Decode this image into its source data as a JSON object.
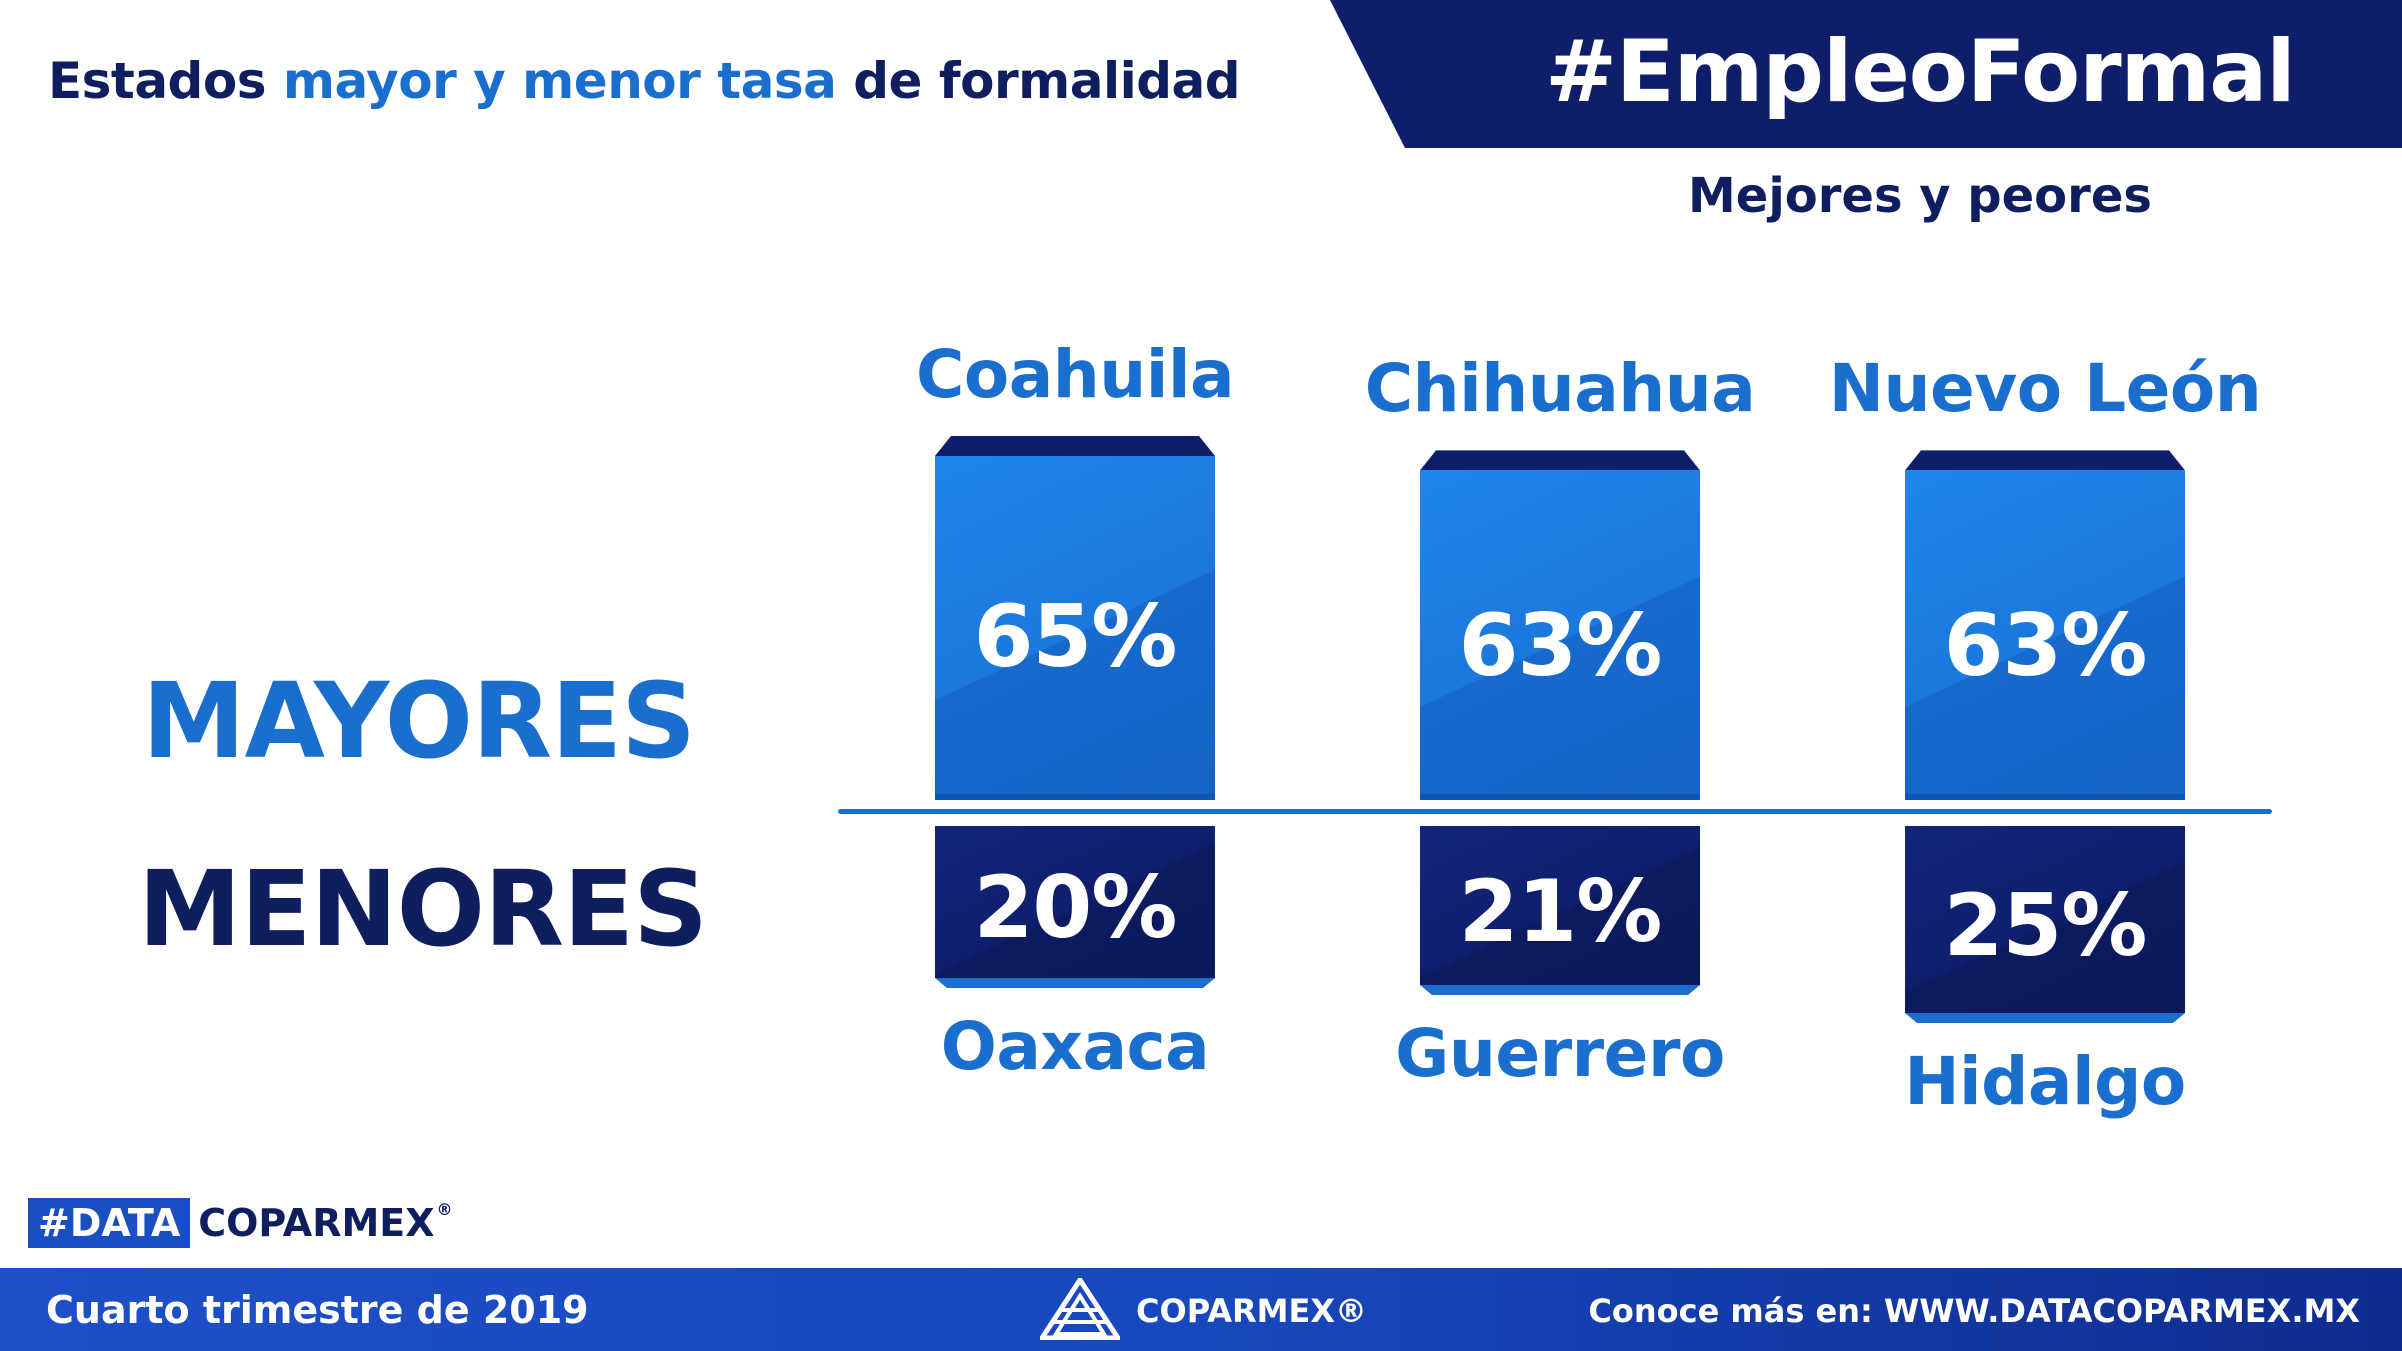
{
  "header": {
    "title_part1": "Estados ",
    "title_highlight": "mayor y menor tasa",
    "title_part2": " de formalidad",
    "hashtag": "#EmpleoFormal",
    "subtitle": "Mejores y peores"
  },
  "sections": {
    "top_label": "MAYORES",
    "bottom_label": "MENORES"
  },
  "chart_data": {
    "type": "bar",
    "title": "Estados mayor y menor tasa de formalidad",
    "mayores": [
      {
        "state": "Coahuila",
        "value": 65,
        "label": "65%"
      },
      {
        "state": "Chihuahua",
        "value": 63,
        "label": "63%"
      },
      {
        "state": "Nuevo León",
        "value": 63,
        "label": "63%"
      }
    ],
    "menores": [
      {
        "state": "Oaxaca",
        "value": 20,
        "label": "20%"
      },
      {
        "state": "Guerrero",
        "value": 21,
        "label": "21%"
      },
      {
        "state": "Hidalgo",
        "value": 25,
        "label": "25%"
      }
    ]
  },
  "brand": {
    "tag": "#DATA",
    "name": "COPARMEX",
    "reg": "®"
  },
  "footer": {
    "period": "Cuarto trimestre de 2019",
    "logo_text": "COPARMEX®",
    "link_text": "Conoce más en:  WWW.DATACOPARMEX.MX"
  },
  "colors": {
    "navy": "#0f1e6a",
    "blue": "#1a6fce"
  }
}
